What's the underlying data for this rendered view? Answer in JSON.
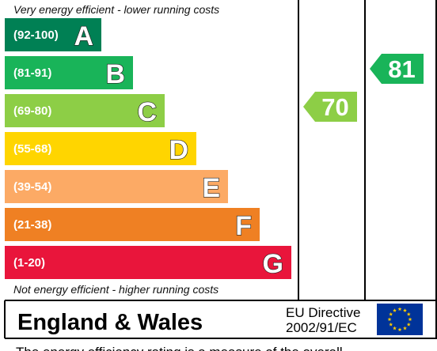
{
  "chart_data": {
    "type": "bar",
    "top_note": "Very energy efficient - lower running costs",
    "bottom_note": "Not energy efficient - higher running costs",
    "bands": [
      {
        "letter": "A",
        "range": "(92-100)",
        "min": 92,
        "max": 100,
        "color": "#008054"
      },
      {
        "letter": "B",
        "range": "(81-91)",
        "min": 81,
        "max": 91,
        "color": "#19b459"
      },
      {
        "letter": "C",
        "range": "(69-80)",
        "min": 69,
        "max": 80,
        "color": "#8dce46"
      },
      {
        "letter": "D",
        "range": "(55-68)",
        "min": 55,
        "max": 68,
        "color": "#ffd500"
      },
      {
        "letter": "E",
        "range": "(39-54)",
        "min": 39,
        "max": 54,
        "color": "#fcaa65"
      },
      {
        "letter": "F",
        "range": "(21-38)",
        "min": 21,
        "max": 38,
        "color": "#ef8023"
      },
      {
        "letter": "G",
        "range": "(1-20)",
        "min": 1,
        "max": 20,
        "color": "#e9153b"
      }
    ],
    "ratings": [
      {
        "value": 70,
        "band": "C",
        "color": "#8dce46"
      },
      {
        "value": 81,
        "band": "B",
        "color": "#19b459"
      }
    ]
  },
  "footer": {
    "title": "England & Wales",
    "directive_line1": "EU Directive",
    "directive_line2": "2002/91/EC"
  },
  "below_text": "The energy efficiency rating is a measure of the overall"
}
